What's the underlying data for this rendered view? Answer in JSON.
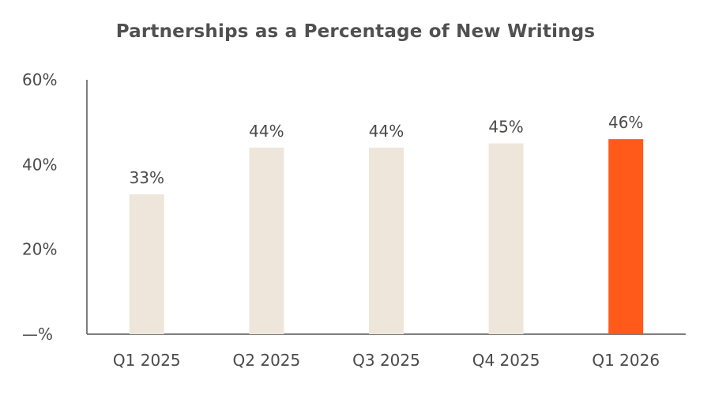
{
  "chart_data": {
    "type": "bar",
    "title": "Partnerships as a Percentage of New Writings",
    "xlabel": "",
    "ylabel": "",
    "categories": [
      "Q1 2025",
      "Q2 2025",
      "Q3 2025",
      "Q4 2025",
      "Q1 2026"
    ],
    "values": [
      33,
      44,
      44,
      45,
      46
    ],
    "data_labels": [
      "33%",
      "44%",
      "44%",
      "45%",
      "46%"
    ],
    "ylim": [
      0,
      60
    ],
    "yticks": [
      0,
      20,
      40,
      60
    ],
    "ytick_labels": [
      "—%",
      "20%",
      "40%",
      "60%"
    ],
    "grid": false,
    "legend": "none",
    "colors": {
      "default_bar": "#EEE6DA",
      "highlight_bar": "#FF5A1A",
      "axis": "#555555"
    },
    "highlight_index": 4
  }
}
